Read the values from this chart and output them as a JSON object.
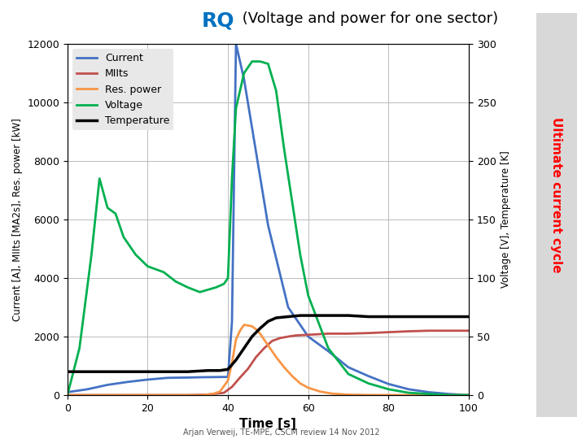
{
  "title_rq": "RQ",
  "title_sub": " (Voltage and power for one sector)",
  "xlabel": "Time [s]",
  "ylabel_left": "Current [A], MIIts [MA2s], Res. power [kW]",
  "ylabel_right": "Voltage [V], Temperature [K]",
  "side_label": "Ultimate current cycle",
  "footer": "Arjan Verweij, TE-MPE, CSCM review 14 Nov 2012",
  "xlim": [
    0,
    100
  ],
  "ylim_left": [
    0,
    12000
  ],
  "ylim_right": [
    0,
    300
  ],
  "yticks_left": [
    0,
    2000,
    4000,
    6000,
    8000,
    10000,
    12000
  ],
  "yticks_right": [
    0,
    50,
    100,
    150,
    200,
    250,
    300
  ],
  "xticks": [
    0,
    20,
    40,
    60,
    80,
    100
  ],
  "bg_color": "#ffffff",
  "plot_bg_color": "#ffffff",
  "grid_color": "#bbbbbb",
  "current_color": "#4472C4",
  "miits_color": "#C0504D",
  "respower_color": "#F79646",
  "voltage_color": "#00B050",
  "temperature_color": "#000000",
  "legend_bg": "#e8e8e8",
  "side_label_color": "#FF0000",
  "side_label_bg": "#d8d8d8",
  "title_rq_color": "#0070C0",
  "title_sub_color": "#000000",
  "current_data_x": [
    0,
    5,
    10,
    15,
    20,
    25,
    30,
    33,
    36,
    39,
    40,
    41,
    42,
    44,
    50,
    55,
    60,
    65,
    70,
    75,
    80,
    85,
    90,
    95,
    100
  ],
  "current_data_y": [
    100,
    200,
    350,
    450,
    530,
    590,
    600,
    610,
    615,
    620,
    620,
    2500,
    12000,
    10800,
    5800,
    3000,
    2000,
    1500,
    950,
    650,
    380,
    200,
    100,
    40,
    0
  ],
  "miits_data_x": [
    0,
    30,
    35,
    39,
    41,
    43,
    45,
    47,
    49,
    51,
    53,
    55,
    57,
    60,
    65,
    70,
    75,
    80,
    85,
    90,
    95,
    100
  ],
  "miits_data_y": [
    0,
    0,
    20,
    80,
    280,
    600,
    900,
    1300,
    1600,
    1850,
    1950,
    2000,
    2040,
    2060,
    2100,
    2100,
    2120,
    2150,
    2180,
    2200,
    2200,
    2200
  ],
  "respower_data_x": [
    0,
    33,
    36,
    38,
    40,
    41,
    42,
    43,
    44,
    45,
    46,
    47,
    48,
    49,
    50,
    52,
    54,
    56,
    58,
    60,
    63,
    66,
    70,
    75,
    80,
    85,
    90,
    95,
    100
  ],
  "respower_data_y": [
    0,
    0,
    30,
    120,
    500,
    1100,
    1900,
    2200,
    2400,
    2380,
    2350,
    2250,
    2100,
    1900,
    1700,
    1300,
    950,
    650,
    400,
    250,
    120,
    50,
    15,
    5,
    2,
    1,
    0,
    0,
    0
  ],
  "voltage_data_x": [
    0,
    3,
    6,
    8,
    10,
    12,
    14,
    17,
    20,
    24,
    27,
    30,
    33,
    35,
    37,
    39,
    40,
    41,
    42,
    44,
    46,
    48,
    50,
    52,
    54,
    56,
    58,
    60,
    65,
    70,
    75,
    80,
    85,
    90,
    95,
    100
  ],
  "voltage_data_y": [
    0,
    40,
    120,
    185,
    160,
    155,
    135,
    120,
    110,
    105,
    97,
    92,
    88,
    90,
    92,
    95,
    100,
    185,
    245,
    275,
    285,
    285,
    283,
    260,
    210,
    165,
    120,
    85,
    40,
    18,
    10,
    5,
    2,
    1,
    0,
    0
  ],
  "temperature_data_x": [
    0,
    5,
    10,
    15,
    20,
    25,
    30,
    35,
    38,
    40,
    42,
    44,
    46,
    48,
    50,
    52,
    55,
    58,
    60,
    65,
    70,
    75,
    80,
    85,
    90,
    95,
    100
  ],
  "temperature_data_y": [
    20,
    20,
    20,
    20,
    20,
    20,
    20,
    21,
    21,
    22,
    30,
    40,
    50,
    57,
    63,
    66,
    67,
    68,
    68,
    68,
    68,
    67,
    67,
    67,
    67,
    67,
    67
  ]
}
